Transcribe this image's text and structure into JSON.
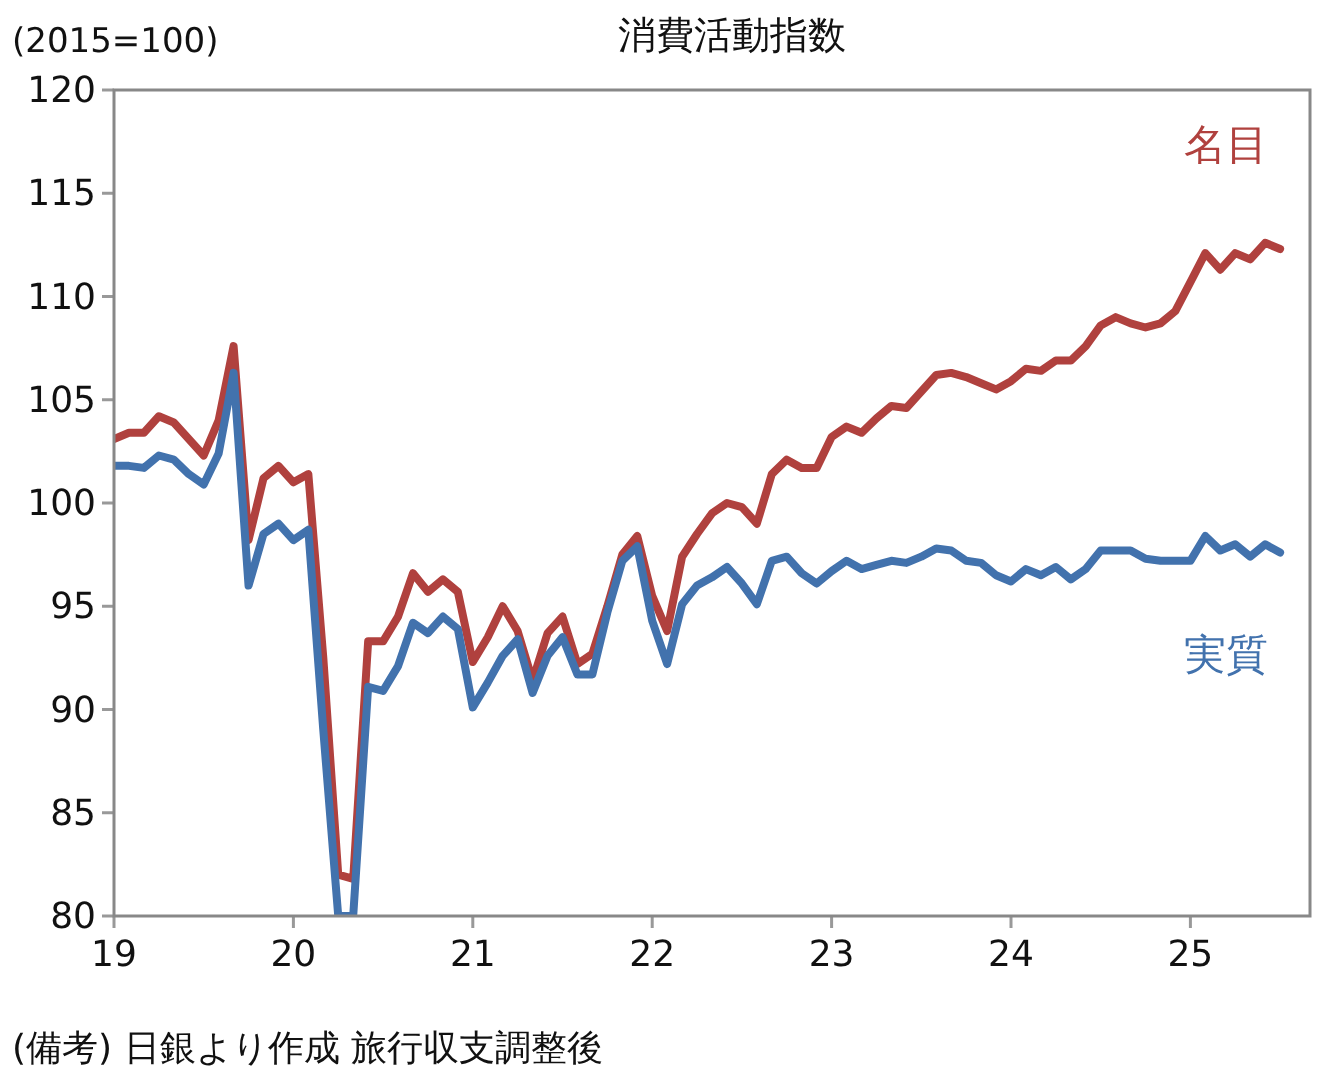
{
  "chart_data": {
    "type": "line",
    "title": "消費活動指数",
    "ylabel": "(2015=100)",
    "annotations": [
      "(備考) 日銀より作成 旅行収支調整後"
    ],
    "x": [
      "2019-01",
      "2019-02",
      "2019-03",
      "2019-04",
      "2019-05",
      "2019-06",
      "2019-07",
      "2019-08",
      "2019-09",
      "2019-10",
      "2019-11",
      "2019-12",
      "2020-01",
      "2020-02",
      "2020-03",
      "2020-04",
      "2020-05",
      "2020-06",
      "2020-07",
      "2020-08",
      "2020-09",
      "2020-10",
      "2020-11",
      "2020-12",
      "2021-01",
      "2021-02",
      "2021-03",
      "2021-04",
      "2021-05",
      "2021-06",
      "2021-07",
      "2021-08",
      "2021-09",
      "2021-10",
      "2021-11",
      "2021-12",
      "2022-01",
      "2022-02",
      "2022-03",
      "2022-04",
      "2022-05",
      "2022-06",
      "2022-07",
      "2022-08",
      "2022-09",
      "2022-10",
      "2022-11",
      "2022-12",
      "2023-01",
      "2023-02",
      "2023-03",
      "2023-04",
      "2023-05",
      "2023-06",
      "2023-07",
      "2023-08",
      "2023-09",
      "2023-10",
      "2023-11",
      "2023-12",
      "2024-01",
      "2024-02",
      "2024-03",
      "2024-04",
      "2024-05",
      "2024-06",
      "2024-07",
      "2024-08",
      "2024-09",
      "2024-10",
      "2024-11",
      "2024-12",
      "2025-01",
      "2025-02",
      "2025-03",
      "2025-04",
      "2025-05",
      "2025-06",
      "2025-07"
    ],
    "series": [
      {
        "name": "名目",
        "color": "#b0413e",
        "values": [
          103.1,
          103.4,
          103.4,
          104.2,
          103.9,
          103.1,
          102.3,
          104.0,
          107.6,
          98.2,
          101.2,
          101.8,
          101.0,
          101.4,
          92.5,
          82.0,
          81.8,
          93.3,
          93.3,
          94.5,
          96.6,
          95.7,
          96.3,
          95.7,
          92.3,
          93.5,
          95.0,
          93.8,
          91.4,
          93.7,
          94.5,
          92.2,
          92.7,
          95.0,
          97.5,
          98.4,
          95.5,
          93.8,
          97.4,
          98.5,
          99.5,
          100.0,
          99.8,
          99.0,
          101.4,
          102.1,
          101.7,
          101.7,
          103.2,
          103.7,
          103.4,
          104.1,
          104.7,
          104.6,
          105.4,
          106.2,
          106.3,
          106.1,
          105.8,
          105.5,
          105.9,
          106.5,
          106.4,
          106.9,
          106.9,
          107.6,
          108.6,
          109.0,
          108.7,
          108.5,
          108.7,
          109.3,
          110.7,
          112.1,
          111.3,
          112.1,
          111.8,
          112.6,
          112.3
        ]
      },
      {
        "name": "実質",
        "color": "#4272ad",
        "values": [
          101.8,
          101.8,
          101.7,
          102.3,
          102.1,
          101.4,
          100.9,
          102.4,
          106.3,
          96.0,
          98.5,
          99.0,
          98.2,
          98.7,
          89.0,
          80,
          80,
          91.1,
          90.9,
          92.1,
          94.2,
          93.7,
          94.5,
          93.9,
          90.1,
          91.3,
          92.6,
          93.4,
          90.8,
          92.6,
          93.5,
          91.7,
          91.7,
          94.7,
          97.2,
          97.9,
          94.3,
          92.2,
          95.1,
          96.0,
          96.4,
          96.9,
          96.1,
          95.1,
          97.2,
          97.4,
          96.6,
          96.1,
          96.7,
          97.2,
          96.8,
          97.0,
          97.2,
          97.1,
          97.4,
          97.8,
          97.7,
          97.2,
          97.1,
          96.5,
          96.2,
          96.8,
          96.5,
          96.9,
          96.3,
          96.8,
          97.7,
          97.7,
          97.7,
          97.3,
          97.2,
          97.2,
          97.2,
          98.4,
          97.7,
          98.0,
          97.4,
          98.0,
          97.6
        ]
      }
    ],
    "xlim": [
      "2019-01",
      "2025-09"
    ],
    "xticks": [
      {
        "value": "2019-01",
        "label": "19"
      },
      {
        "value": "2020-01",
        "label": "20"
      },
      {
        "value": "2021-01",
        "label": "21"
      },
      {
        "value": "2022-01",
        "label": "22"
      },
      {
        "value": "2023-01",
        "label": "23"
      },
      {
        "value": "2024-01",
        "label": "24"
      },
      {
        "value": "2025-01",
        "label": "25"
      }
    ],
    "ylim": [
      80,
      120
    ],
    "yticks": [
      80,
      85,
      90,
      95,
      100,
      105,
      110,
      115,
      120
    ],
    "grid": false,
    "legend": false,
    "marker": "none",
    "line_style": "solid"
  }
}
